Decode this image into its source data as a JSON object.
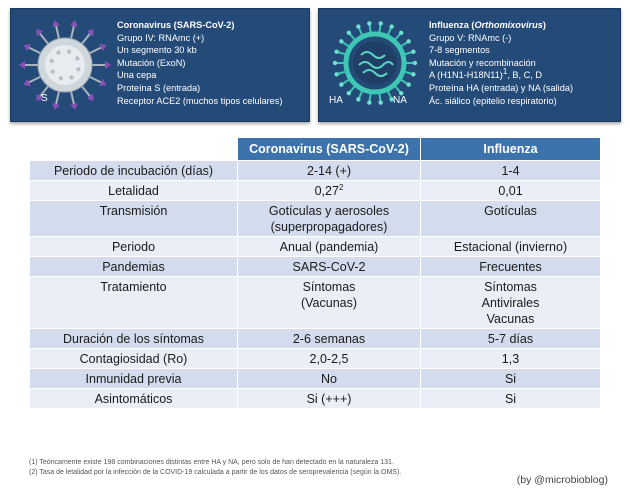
{
  "panels": {
    "corona": {
      "virus_label": "S",
      "title": "Coronavirus (SARS-CoV-2)",
      "lines": [
        "Grupo IV: RNAmc (+)",
        "Un segmento 30 kb",
        "Mutación (ExoN)",
        "Una cepa",
        "Proteína S (entrada)",
        "Receptor ACE2 (muchos tipos celulares)"
      ]
    },
    "flu": {
      "virus_label_left": "HA",
      "virus_label_right": "NA",
      "title_prefix": "Influenza (",
      "title_italic": "Orthomixovirus",
      "title_suffix": ")",
      "lines": [
        "Grupo V: RNAmc (-)",
        "7-8 segmentos",
        "Mutación y recombinación"
      ],
      "line_strain_a": "A (H1N1-H18N11)",
      "line_strain_sup": "1",
      "line_strain_b": ", B, C, D",
      "lines_after": [
        "Proteína HA (entrada) y NA (salida)",
        "Ác. siálico (epitelio respiratorio)"
      ]
    }
  },
  "table": {
    "headers": [
      "",
      "Coronavirus (SARS-CoV-2)",
      "Influenza"
    ],
    "rows": [
      {
        "label": "Periodo de incubación (días)",
        "corona": [
          "2-14 (+)"
        ],
        "flu": [
          "1-4"
        ]
      },
      {
        "label": "Letalidad",
        "corona": [
          "0,27"
        ],
        "corona_sup": "2",
        "flu": [
          "0,01"
        ]
      },
      {
        "label": "Transmisión",
        "corona": [
          "Gotículas y aerosoles",
          "(superpropagadores)"
        ],
        "flu": [
          "Gotículas"
        ]
      },
      {
        "label": "Periodo",
        "corona": [
          "Anual (pandemia)"
        ],
        "flu": [
          "Estacional (invierno)"
        ]
      },
      {
        "label": "Pandemias",
        "corona": [
          "SARS-CoV-2"
        ],
        "flu": [
          "Frecuentes"
        ]
      },
      {
        "label": "Tratamiento",
        "corona": [
          "Síntomas",
          "(Vacunas)"
        ],
        "flu": [
          "Síntomas",
          "Antivirales",
          "Vacunas"
        ]
      },
      {
        "label": "Duración de los síntomas",
        "corona": [
          "2-6 semanas"
        ],
        "flu": [
          "5-7 días"
        ]
      },
      {
        "label": "Contagiosidad (Ro)",
        "corona": [
          "2,0-2,5"
        ],
        "flu": [
          "1,3"
        ]
      },
      {
        "label": "Inmunidad previa",
        "corona": [
          "No"
        ],
        "flu": [
          "Si"
        ]
      },
      {
        "label": "Asintomáticos",
        "corona": [
          "Si (+++)"
        ],
        "flu": [
          "Si"
        ]
      }
    ]
  },
  "footnotes": [
    "(1) Teóricamente existe 198 combinaciones distintas entre HA y NA, pero solo de han detectado en la naturaleza 131.",
    "(2) Tasa de letalidad por la infección de la COVID-19 calculada a partir de los datos de seroprevalencia (según la OMS)."
  ],
  "credit": "(by @microbioblog)",
  "colors": {
    "panel_bg": "#244a78",
    "header_bg": "#3c73ad",
    "row_dark": "#d3dcec",
    "row_light": "#eaeff7",
    "corona_spikes": "#8a4fb8",
    "corona_body": "#cfd6dc",
    "flu_body": "#3fc7b5"
  }
}
